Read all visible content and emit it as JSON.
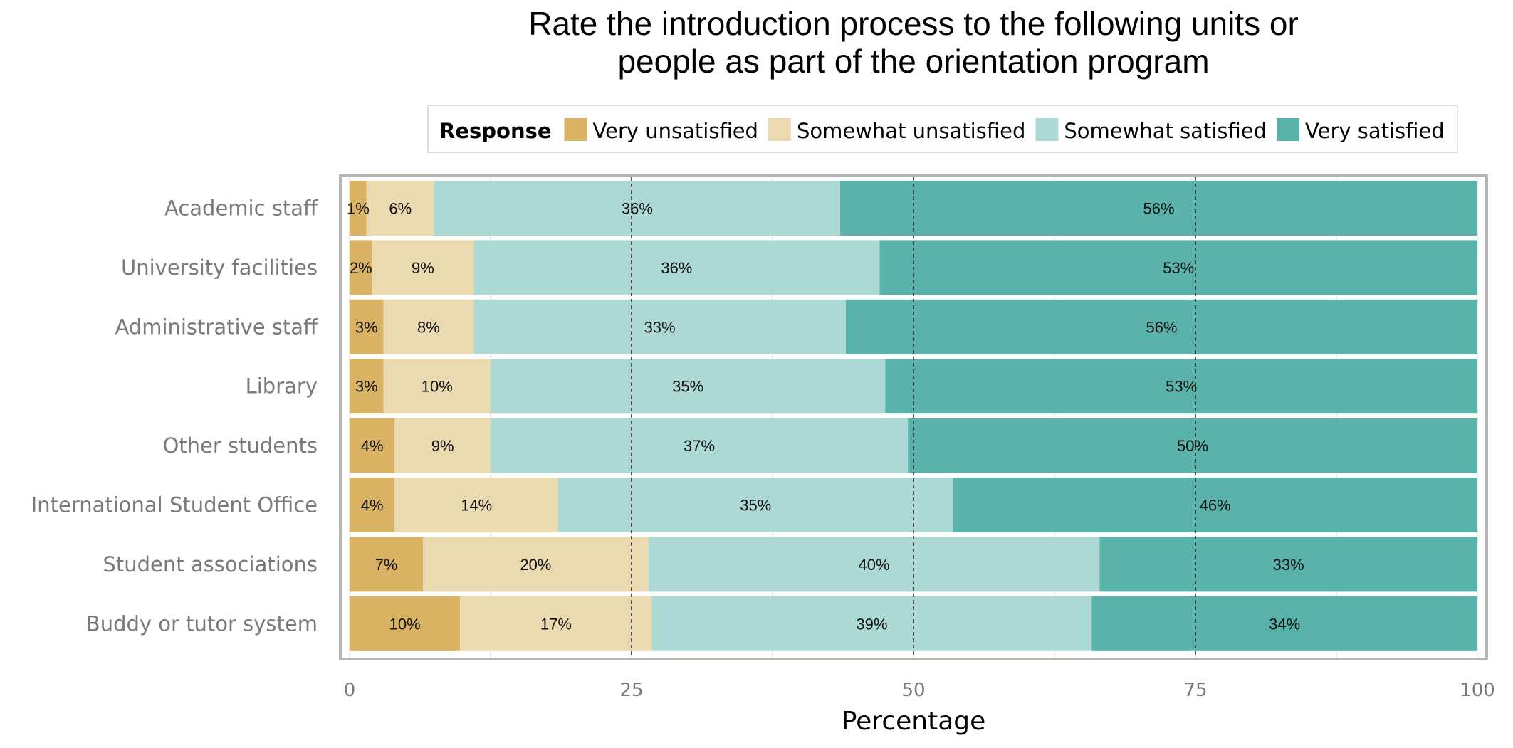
{
  "chart_data": {
    "type": "bar",
    "orientation": "horizontal",
    "stacked": true,
    "title": "Rate the introduction process to the following units or people as part of the orientation program",
    "title_lines": [
      "Rate the introduction process to the following units or",
      "people as part of the orientation program"
    ],
    "xlabel": "Percentage",
    "ylabel": "",
    "xlim": [
      0,
      100
    ],
    "xticks": [
      0,
      25,
      50,
      75,
      100
    ],
    "reference_lines": [
      25,
      50,
      75
    ],
    "grid": true,
    "legend": {
      "title": "Response",
      "position": "top"
    },
    "categories": [
      "Academic staff",
      "University facilities",
      "Administrative staff",
      "Library",
      "Other students",
      "International Student Office",
      "Student associations",
      "Buddy or tutor system"
    ],
    "series": [
      {
        "name": "Very unsatisfied",
        "color": "#d9b263",
        "values": [
          1.5,
          2,
          3,
          3,
          4,
          4,
          6.5,
          9.8
        ],
        "labels": [
          "1%",
          "2%",
          "3%",
          "3%",
          "4%",
          "4%",
          "7%",
          "10%"
        ]
      },
      {
        "name": "Somewhat unsatisfied",
        "color": "#ebd9b0",
        "values": [
          6,
          9,
          8,
          9.5,
          8.5,
          14.5,
          20,
          17
        ],
        "labels": [
          "6%",
          "9%",
          "8%",
          "10%",
          "9%",
          "14%",
          "20%",
          "17%"
        ]
      },
      {
        "name": "Somewhat satisfied",
        "color": "#add9d5",
        "values": [
          36,
          36,
          33,
          35,
          37,
          35,
          40,
          39
        ],
        "labels": [
          "36%",
          "36%",
          "33%",
          "35%",
          "37%",
          "35%",
          "40%",
          "39%"
        ]
      },
      {
        "name": "Very satisfied",
        "color": "#5ab3aa",
        "values": [
          56.5,
          53,
          56,
          52.5,
          50.5,
          46.5,
          33.5,
          34.2
        ],
        "labels": [
          "56%",
          "53%",
          "56%",
          "53%",
          "50%",
          "46%",
          "33%",
          "34%"
        ]
      }
    ]
  }
}
